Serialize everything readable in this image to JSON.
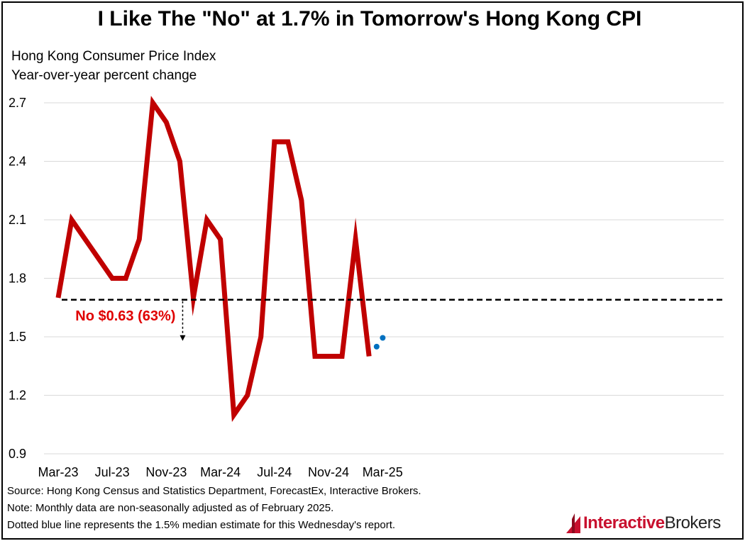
{
  "header": {
    "title": "I Like The \"No\" at 1.7% in Tomorrow's Hong Kong CPI",
    "subtitle_line1": "Hong Kong Consumer Price Index",
    "subtitle_line2": "Year-over-year percent change"
  },
  "chart_data": {
    "type": "line",
    "title": "I Like The \"No\" at 1.7% in Tomorrow's Hong Kong CPI",
    "ylabel": "Year-over-year percent change",
    "ylim": [
      0.9,
      2.7
    ],
    "y_ticks": [
      "2.7",
      "2.4",
      "2.1",
      "1.8",
      "1.5",
      "1.2",
      "0.9"
    ],
    "x_tick_labels": [
      "Mar-23",
      "Jul-23",
      "Nov-23",
      "Mar-24",
      "Jul-24",
      "Nov-24",
      "Mar-25"
    ],
    "grid": "horizontal",
    "series": [
      {
        "color": "#c00000",
        "style": "solid",
        "x": [
          "2023-03",
          "2023-04",
          "2023-05",
          "2023-06",
          "2023-07",
          "2023-08",
          "2023-09",
          "2023-10",
          "2023-11",
          "2023-12",
          "2024-01",
          "2024-02",
          "2024-03",
          "2024-04",
          "2024-05",
          "2024-06",
          "2024-07",
          "2024-08",
          "2024-09",
          "2024-10",
          "2024-11",
          "2024-12",
          "2025-01",
          "2025-02"
        ],
        "values": [
          1.7,
          2.1,
          2.0,
          1.9,
          1.8,
          1.8,
          2.0,
          2.7,
          2.6,
          2.4,
          1.7,
          2.1,
          2.0,
          1.1,
          1.2,
          1.5,
          2.5,
          2.5,
          2.2,
          1.4,
          1.4,
          1.4,
          2.0,
          1.4
        ]
      },
      {
        "color": "#0070c0",
        "style": "dotted",
        "x": [
          "2025-02",
          "2025-03"
        ],
        "values": [
          1.4,
          1.5
        ]
      }
    ],
    "reference_line": {
      "value": 1.69,
      "style": "dashed",
      "color": "#000000"
    },
    "annotation": {
      "text": "No $0.63 (63%)",
      "color": "#e00000",
      "x": "2023-12"
    }
  },
  "footer": {
    "source": "Source: Hong Kong Census and Statistics Department, ForecastEx, Interactive Brokers.",
    "note": "Note: Monthly data are non-seasonally adjusted as of February 2025.",
    "dotted": "Dotted blue line represents the 1.5% median estimate for this Wednesday's report.",
    "logo_part1": "Interactive",
    "logo_part2": "Brokers",
    "logo_icon": "interactive-brokers-logo-icon"
  }
}
